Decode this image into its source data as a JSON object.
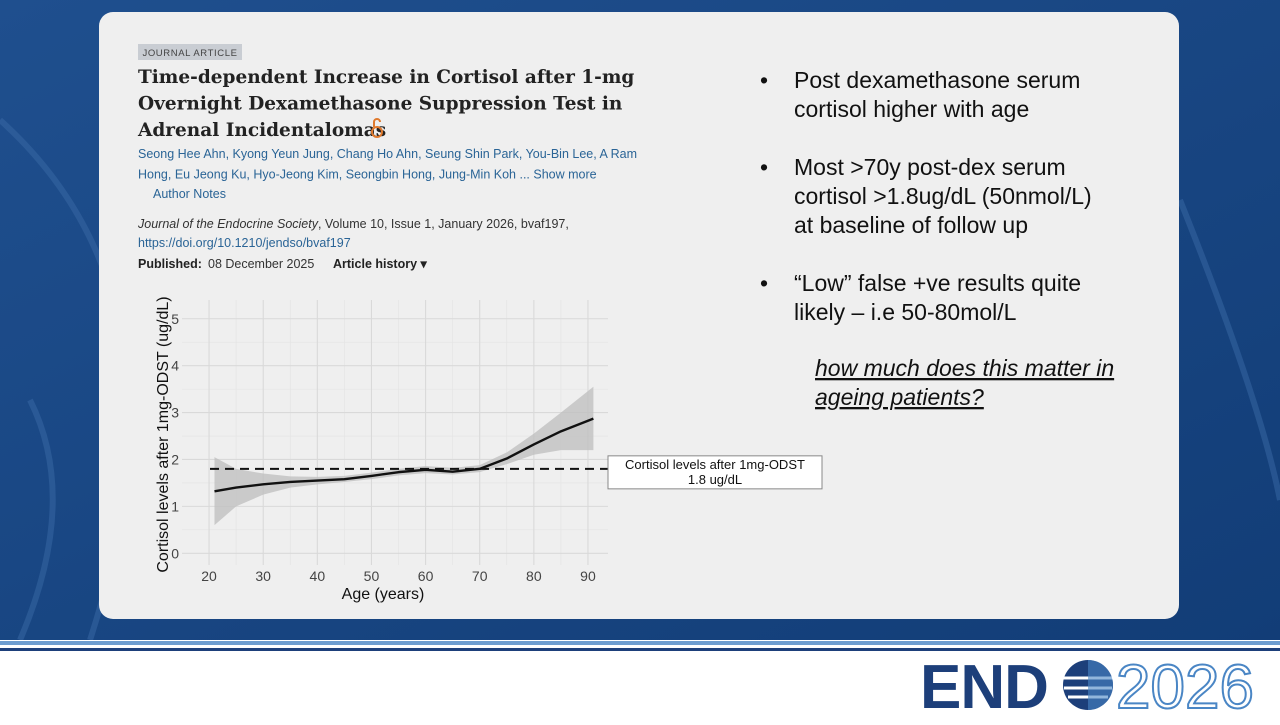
{
  "article": {
    "tag": "JOURNAL ARTICLE",
    "title_lines": [
      "Time-dependent Increase in Cortisol after 1-mg",
      "Overnight Dexamethasone Suppression Test in",
      "Adrenal Incidentalomas"
    ],
    "author_lines": [
      "Seong Hee Ahn, Kyong Yeun Jung, Chang Ho Ahn, Seung Shin Park, You-Bin Lee, A Ram",
      "Hong, Eu Jeong Ku, Hyo-Jeong Kim, Seongbin Hong, Jung-Min Koh ... Show more"
    ],
    "author_notes": "Author Notes",
    "journal": "Journal of the Endocrine Society",
    "citation": ", Volume 10, Issue 1, January 2026, bvaf197,",
    "doi": "https://doi.org/10.1210/jendso/bvaf197",
    "published_label": "Published:",
    "published_date": "08 December 2025",
    "history": "Article history ▾"
  },
  "bullets": [
    [
      "Post dexamethasone serum",
      "cortisol higher with age"
    ],
    [
      "Most >70y post-dex serum",
      "cortisol >1.8ug/dL (50nmol/L)",
      "at baseline of follow up"
    ],
    [
      "“Low” false +ve results quite",
      "likely – i.e 50-80mol/L"
    ]
  ],
  "bullet_symbol": "•",
  "note_lines": [
    "how much does this matter in",
    "ageing patients?"
  ],
  "logo": {
    "left": "END",
    "right": "2026"
  },
  "chart_data": {
    "type": "line",
    "x_label": "Age (years)",
    "y_label": "Cortisol levels after 1mg-ODST (ug/dL)",
    "x": [
      21,
      25,
      30,
      35,
      40,
      45,
      50,
      55,
      60,
      65,
      70,
      75,
      80,
      85,
      91
    ],
    "series": [
      {
        "name": null,
        "color": "#111111",
        "values": [
          1.32,
          1.4,
          1.47,
          1.52,
          1.55,
          1.58,
          1.65,
          1.73,
          1.78,
          1.74,
          1.8,
          2.02,
          2.32,
          2.6,
          2.87
        ]
      }
    ],
    "band": {
      "color": "#bdbdbd",
      "lower": [
        0.6,
        1.0,
        1.25,
        1.4,
        1.47,
        1.52,
        1.58,
        1.66,
        1.71,
        1.68,
        1.73,
        1.9,
        2.1,
        2.2,
        2.2
      ],
      "upper": [
        2.05,
        1.8,
        1.7,
        1.64,
        1.63,
        1.65,
        1.72,
        1.8,
        1.86,
        1.82,
        1.88,
        2.15,
        2.55,
        3.0,
        3.55
      ]
    },
    "reference_line": {
      "value": 1.8,
      "label_lines": [
        "Cortisol levels after 1mg-ODST",
        "1.8 ug/dL"
      ]
    },
    "xlim": [
      15,
      93.7
    ],
    "ylim": [
      -0.25,
      5.4
    ],
    "xticks": [
      20,
      30,
      40,
      50,
      60,
      70,
      80,
      90
    ],
    "yticks": [
      0,
      1,
      2,
      3,
      4,
      5
    ],
    "grid": true
  }
}
